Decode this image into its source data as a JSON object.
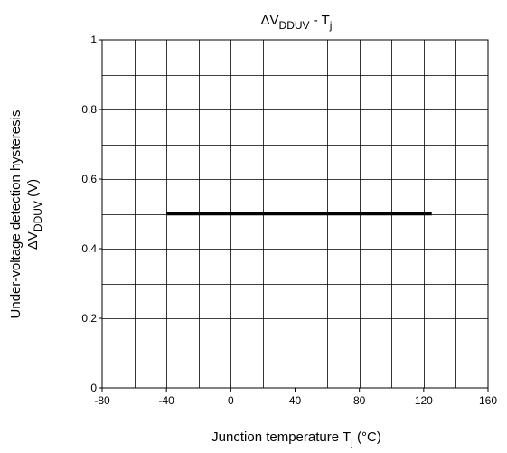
{
  "chart_data": {
    "type": "line",
    "title": {
      "main": "ΔV",
      "sub": "DDUV",
      "rest": " - T",
      "sub2": "j"
    },
    "xlabel": {
      "main": "Junction temperature   T",
      "sub": "j",
      "rest": "   (°C)"
    },
    "ylabel": {
      "line1": "Under-voltage detection hysteresis",
      "line2_main": "ΔV",
      "line2_sub": "DDUV",
      "line2_rest": "   (V)"
    },
    "xlim": [
      -80,
      160
    ],
    "ylim": [
      0,
      1
    ],
    "x_ticks": [
      -80,
      -40,
      0,
      40,
      80,
      120,
      160
    ],
    "x_tick_labels": [
      "-80",
      "-40",
      "0",
      "40",
      "80",
      "120",
      "160"
    ],
    "y_ticks": [
      0,
      0.2,
      0.4,
      0.6,
      0.8,
      1
    ],
    "y_tick_labels": [
      "0",
      "0.2",
      "0.4",
      "0.6",
      "0.8",
      "1"
    ],
    "grid": true,
    "x_grid_step": 20,
    "y_grid_step": 0.1,
    "series": [
      {
        "x": [
          -40,
          125
        ],
        "y": [
          0.5,
          0.5
        ],
        "color": "#000000"
      }
    ]
  }
}
